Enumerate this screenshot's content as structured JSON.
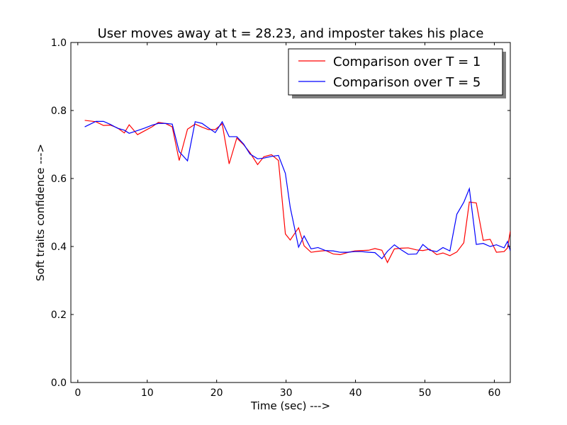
{
  "chart_data": {
    "type": "line",
    "title": "User moves away at t = 28.23, and imposter takes his place",
    "xlabel": "Time (sec) --->",
    "ylabel": "Soft traits confidence --->",
    "xlim": [
      -1,
      62.3
    ],
    "ylim": [
      0,
      1.0
    ],
    "x_ticks": [
      0,
      10,
      20,
      30,
      40,
      50,
      60
    ],
    "x_tick_labels": [
      "0",
      "10",
      "20",
      "30",
      "40",
      "50",
      "60"
    ],
    "y_ticks": [
      0.0,
      0.2,
      0.4,
      0.6,
      0.8,
      1.0
    ],
    "y_tick_labels": [
      "0.0",
      "0.2",
      "0.4",
      "0.6",
      "0.8",
      "1.0"
    ],
    "grid": false,
    "legend_position": "top-right",
    "series": [
      {
        "name": "Comparison over T = 1",
        "color": "#ff0000",
        "x": [
          1.0,
          2.6,
          3.7,
          4.7,
          5.7,
          6.7,
          7.4,
          8.6,
          9.6,
          10.7,
          11.6,
          12.6,
          13.6,
          14.6,
          15.8,
          16.9,
          17.9,
          18.8,
          19.8,
          20.8,
          21.8,
          22.9,
          23.9,
          24.8,
          25.9,
          26.8,
          27.9,
          28.9,
          29.9,
          30.6,
          31.8,
          32.6,
          33.6,
          34.6,
          35.7,
          36.8,
          37.8,
          38.8,
          39.9,
          40.8,
          41.9,
          42.8,
          43.8,
          44.6,
          45.6,
          46.6,
          47.6,
          48.8,
          49.7,
          50.7,
          51.7,
          52.6,
          53.6,
          54.6,
          55.6,
          56.4,
          57.4,
          58.4,
          59.4,
          60.3,
          61.4,
          61.9,
          62.3
        ],
        "values": [
          0.771,
          0.767,
          0.756,
          0.757,
          0.749,
          0.734,
          0.758,
          0.729,
          0.74,
          0.752,
          0.765,
          0.762,
          0.752,
          0.653,
          0.745,
          0.76,
          0.751,
          0.744,
          0.744,
          0.761,
          0.643,
          0.719,
          0.699,
          0.676,
          0.641,
          0.664,
          0.67,
          0.653,
          0.437,
          0.419,
          0.455,
          0.402,
          0.383,
          0.386,
          0.388,
          0.378,
          0.376,
          0.382,
          0.387,
          0.388,
          0.389,
          0.394,
          0.389,
          0.353,
          0.393,
          0.395,
          0.396,
          0.39,
          0.388,
          0.392,
          0.376,
          0.381,
          0.373,
          0.384,
          0.411,
          0.531,
          0.528,
          0.418,
          0.421,
          0.383,
          0.385,
          0.396,
          0.446
        ]
      },
      {
        "name": "Comparison over T = 5",
        "color": "#0000ff",
        "x": [
          1.0,
          2.6,
          3.7,
          4.7,
          5.7,
          6.7,
          7.4,
          8.6,
          9.6,
          10.7,
          11.6,
          12.6,
          13.6,
          14.6,
          15.8,
          16.9,
          17.9,
          18.8,
          19.8,
          20.8,
          21.8,
          22.9,
          23.9,
          24.8,
          25.9,
          26.8,
          27.9,
          28.9,
          29.9,
          30.6,
          31.8,
          32.6,
          33.6,
          34.6,
          35.7,
          36.8,
          37.8,
          38.8,
          39.9,
          40.8,
          41.9,
          42.8,
          43.8,
          44.6,
          45.6,
          46.6,
          47.6,
          48.8,
          49.7,
          50.7,
          51.7,
          52.6,
          53.6,
          54.6,
          55.6,
          56.4,
          57.4,
          58.4,
          59.4,
          60.3,
          61.4,
          61.9,
          62.3
        ],
        "values": [
          0.752,
          0.768,
          0.768,
          0.759,
          0.748,
          0.742,
          0.733,
          0.741,
          0.748,
          0.757,
          0.762,
          0.762,
          0.76,
          0.679,
          0.652,
          0.767,
          0.762,
          0.749,
          0.735,
          0.767,
          0.723,
          0.723,
          0.701,
          0.672,
          0.658,
          0.66,
          0.665,
          0.668,
          0.615,
          0.515,
          0.398,
          0.431,
          0.393,
          0.397,
          0.388,
          0.387,
          0.383,
          0.383,
          0.385,
          0.385,
          0.383,
          0.382,
          0.364,
          0.386,
          0.405,
          0.39,
          0.377,
          0.378,
          0.406,
          0.389,
          0.385,
          0.397,
          0.387,
          0.495,
          0.53,
          0.57,
          0.406,
          0.409,
          0.4,
          0.405,
          0.396,
          0.415,
          0.387
        ]
      }
    ]
  }
}
